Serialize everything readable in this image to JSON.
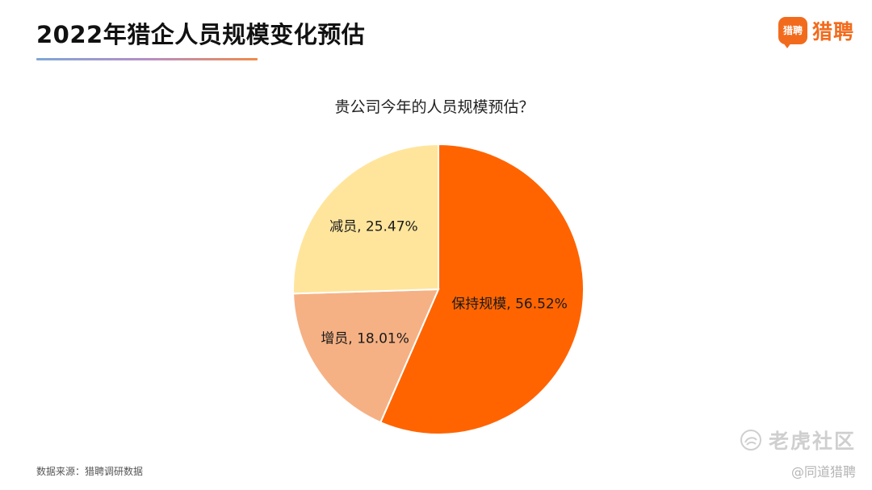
{
  "header": {
    "title": "2022年猎企人员规模变化预估",
    "brand_badge": "猎聘",
    "brand_name": "猎聘"
  },
  "chart_data": {
    "type": "pie",
    "title": "贵公司今年的人员规模预估？",
    "slices": [
      {
        "label": "保持规模",
        "value": 56.52,
        "display": "保持规模, 56.52%",
        "color": "#ff6400"
      },
      {
        "label": "增员",
        "value": 18.01,
        "display": "增员, 18.01%",
        "color": "#f5b184"
      },
      {
        "label": "减员",
        "value": 25.47,
        "display": "减员, 25.47%",
        "color": "#ffe59c"
      }
    ],
    "start_angle_deg": 0,
    "direction": "clockwise",
    "legend": "none",
    "unit": "%"
  },
  "footer": {
    "source": "数据来源：猎聘调研数据",
    "watermark": "老虎社区",
    "credit": "@同道猎聘"
  },
  "icons": {
    "brand": "speech-bubble-logo-icon",
    "watermark": "tiger-community-logo-icon"
  }
}
